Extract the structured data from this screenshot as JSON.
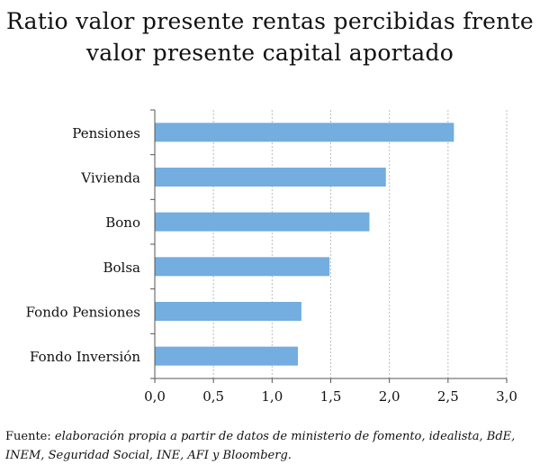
{
  "chart_data": {
    "type": "bar",
    "orientation": "horizontal",
    "title_lines": [
      "Ratio valor presente rentas percibidas frente",
      "valor presente capital aportado"
    ],
    "categories": [
      "Pensiones",
      "Vivienda",
      "Bono",
      "Bolsa",
      "Fondo Pensiones",
      "Fondo Inversión"
    ],
    "values": [
      2.55,
      1.97,
      1.83,
      1.49,
      1.25,
      1.22
    ],
    "xlim": [
      0,
      3
    ],
    "xticks": [
      "0,0",
      "0,5",
      "1,0",
      "1,5",
      "2,0",
      "2,5",
      "3,0"
    ],
    "grid": "vertical-dashed",
    "bar_color": "#74addf"
  },
  "footer": {
    "lead": "Fuente: ",
    "body": "elaboración propia a partir de datos de ministerio de fomento, idealista, BdE, INEM, Seguridad Social, INE, AFI y Bloomberg."
  }
}
